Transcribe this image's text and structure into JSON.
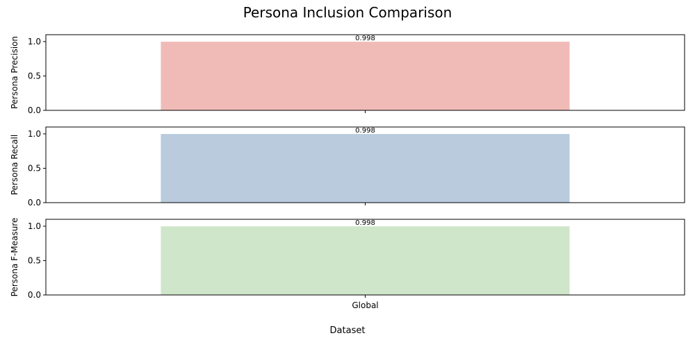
{
  "chart_data": {
    "type": "bar",
    "title": "Persona Inclusion Comparison",
    "xlabel": "Dataset",
    "categories": [
      "Global"
    ],
    "subplots": [
      {
        "name": "precision",
        "ylabel": "Persona Precision",
        "values": [
          0.998
        ],
        "value_labels": [
          "0.998"
        ],
        "color": "#f0bbb7",
        "ylim": [
          0,
          1.1
        ],
        "yticks": [
          0.0,
          0.5,
          1.0
        ],
        "ytick_labels": [
          "0.0",
          "0.5",
          "1.0"
        ],
        "show_xticklabels": false
      },
      {
        "name": "recall",
        "ylabel": "Persona Recall",
        "values": [
          0.998
        ],
        "value_labels": [
          "0.998"
        ],
        "color": "#b9cbdd",
        "ylim": [
          0,
          1.1
        ],
        "yticks": [
          0.0,
          0.5,
          1.0
        ],
        "ytick_labels": [
          "0.0",
          "0.5",
          "1.0"
        ],
        "show_xticklabels": false
      },
      {
        "name": "f-measure",
        "ylabel": "Persona F-Measure",
        "values": [
          0.998
        ],
        "value_labels": [
          "0.998"
        ],
        "color": "#d0e6cb",
        "ylim": [
          0,
          1.1
        ],
        "yticks": [
          0.0,
          0.5,
          1.0
        ],
        "ytick_labels": [
          "0.0",
          "0.5",
          "1.0"
        ],
        "show_xticklabels": true
      }
    ],
    "grid": false,
    "legend": "none"
  }
}
